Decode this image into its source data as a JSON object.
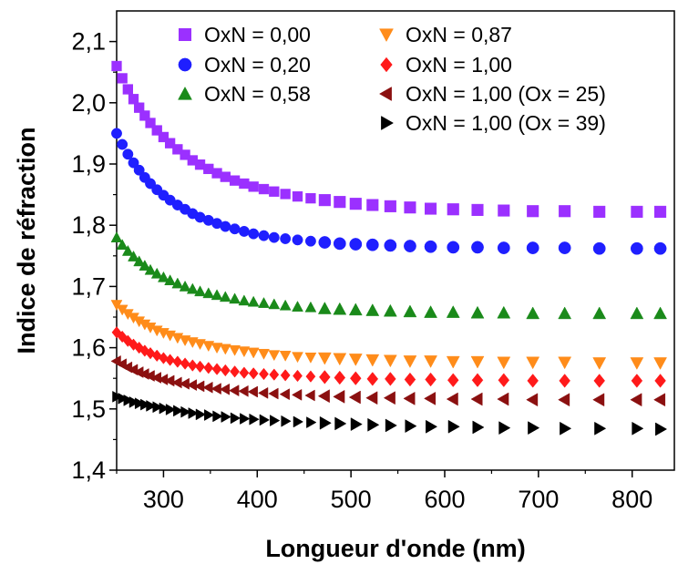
{
  "chart_data": {
    "type": "scatter",
    "title": "",
    "xlabel": "Longueur d'onde (nm)",
    "ylabel": "Indice de réfraction",
    "xlim": [
      250,
      845
    ],
    "ylim": [
      1.4,
      2.15
    ],
    "xticks": [
      300,
      400,
      500,
      600,
      700,
      800
    ],
    "xtick_labels": [
      "300",
      "400",
      "500",
      "600",
      "700",
      "800"
    ],
    "yticks": [
      1.4,
      1.5,
      1.6,
      1.7,
      1.8,
      1.9,
      2.0,
      2.1
    ],
    "ytick_labels": [
      "1,4",
      "1,5",
      "1,6",
      "1,7",
      "1,8",
      "1,9",
      "2,0",
      "2,1"
    ],
    "grid": false,
    "legend_position": "top-right",
    "x": [
      250,
      256,
      262,
      268,
      274,
      280,
      286,
      293,
      300,
      307,
      315,
      323,
      331,
      339,
      348,
      357,
      366,
      376,
      386,
      396,
      407,
      418,
      430,
      443,
      457,
      472,
      488,
      505,
      523,
      542,
      563,
      585,
      609,
      635,
      663,
      694,
      728,
      765,
      805,
      830
    ],
    "series": [
      {
        "name": "OxN = 0,00",
        "marker": "square",
        "color": "#9b30ff",
        "values": [
          2.06,
          2.04,
          2.022,
          2.006,
          1.992,
          1.979,
          1.967,
          1.955,
          1.944,
          1.934,
          1.924,
          1.915,
          1.906,
          1.899,
          1.892,
          1.885,
          1.879,
          1.873,
          1.868,
          1.863,
          1.859,
          1.855,
          1.851,
          1.847,
          1.844,
          1.841,
          1.838,
          1.835,
          1.833,
          1.831,
          1.829,
          1.827,
          1.826,
          1.825,
          1.824,
          1.823,
          1.823,
          1.822,
          1.822,
          1.822
        ]
      },
      {
        "name": "OxN = 0,20",
        "marker": "circle",
        "color": "#1f1fff",
        "values": [
          1.95,
          1.932,
          1.916,
          1.902,
          1.89,
          1.878,
          1.868,
          1.858,
          1.849,
          1.841,
          1.833,
          1.826,
          1.819,
          1.813,
          1.808,
          1.803,
          1.798,
          1.794,
          1.79,
          1.786,
          1.783,
          1.78,
          1.778,
          1.776,
          1.774,
          1.772,
          1.77,
          1.769,
          1.768,
          1.767,
          1.766,
          1.765,
          1.764,
          1.764,
          1.763,
          1.763,
          1.763,
          1.762,
          1.762,
          1.762
        ]
      },
      {
        "name": "OxN = 0,58",
        "marker": "triangle-up",
        "color": "#1a8a1a",
        "values": [
          1.78,
          1.768,
          1.758,
          1.749,
          1.741,
          1.734,
          1.727,
          1.721,
          1.715,
          1.71,
          1.705,
          1.7,
          1.696,
          1.692,
          1.689,
          1.686,
          1.683,
          1.68,
          1.677,
          1.675,
          1.673,
          1.671,
          1.669,
          1.667,
          1.666,
          1.664,
          1.663,
          1.662,
          1.661,
          1.66,
          1.659,
          1.658,
          1.658,
          1.657,
          1.657,
          1.656,
          1.656,
          1.656,
          1.656,
          1.656
        ]
      },
      {
        "name": "OxN = 0,87",
        "marker": "triangle-down",
        "color": "#ff8c1a",
        "values": [
          1.67,
          1.662,
          1.655,
          1.649,
          1.643,
          1.638,
          1.633,
          1.628,
          1.624,
          1.62,
          1.616,
          1.612,
          1.609,
          1.606,
          1.603,
          1.6,
          1.598,
          1.596,
          1.594,
          1.592,
          1.59,
          1.588,
          1.587,
          1.585,
          1.584,
          1.583,
          1.582,
          1.581,
          1.58,
          1.579,
          1.578,
          1.578,
          1.577,
          1.577,
          1.576,
          1.576,
          1.576,
          1.575,
          1.575,
          1.575
        ]
      },
      {
        "name": "OxN = 1,00",
        "marker": "diamond",
        "color": "#ff1a1a",
        "values": [
          1.625,
          1.618,
          1.611,
          1.605,
          1.6,
          1.595,
          1.591,
          1.587,
          1.583,
          1.58,
          1.577,
          1.574,
          1.571,
          1.569,
          1.567,
          1.565,
          1.563,
          1.561,
          1.559,
          1.558,
          1.557,
          1.556,
          1.555,
          1.554,
          1.553,
          1.552,
          1.551,
          1.55,
          1.549,
          1.549,
          1.548,
          1.548,
          1.547,
          1.547,
          1.547,
          1.546,
          1.546,
          1.546,
          1.546,
          1.546
        ]
      },
      {
        "name": "OxN = 1,00 (Ox = 25)",
        "marker": "triangle-left",
        "color": "#8b1010",
        "values": [
          1.578,
          1.573,
          1.568,
          1.564,
          1.56,
          1.557,
          1.554,
          1.551,
          1.548,
          1.546,
          1.543,
          1.541,
          1.539,
          1.537,
          1.535,
          1.533,
          1.532,
          1.53,
          1.529,
          1.528,
          1.526,
          1.525,
          1.524,
          1.523,
          1.522,
          1.521,
          1.52,
          1.519,
          1.518,
          1.518,
          1.517,
          1.517,
          1.516,
          1.516,
          1.516,
          1.515,
          1.515,
          1.515,
          1.515,
          1.515
        ]
      },
      {
        "name": "OxN = 1,00 (Ox = 39)",
        "marker": "triangle-right",
        "color": "#000000",
        "values": [
          1.52,
          1.517,
          1.514,
          1.511,
          1.509,
          1.507,
          1.505,
          1.503,
          1.501,
          1.499,
          1.497,
          1.495,
          1.493,
          1.491,
          1.49,
          1.488,
          1.487,
          1.485,
          1.484,
          1.483,
          1.482,
          1.481,
          1.48,
          1.479,
          1.478,
          1.477,
          1.476,
          1.475,
          1.474,
          1.473,
          1.472,
          1.471,
          1.471,
          1.47,
          1.469,
          1.469,
          1.468,
          1.468,
          1.468,
          1.467
        ]
      }
    ]
  }
}
